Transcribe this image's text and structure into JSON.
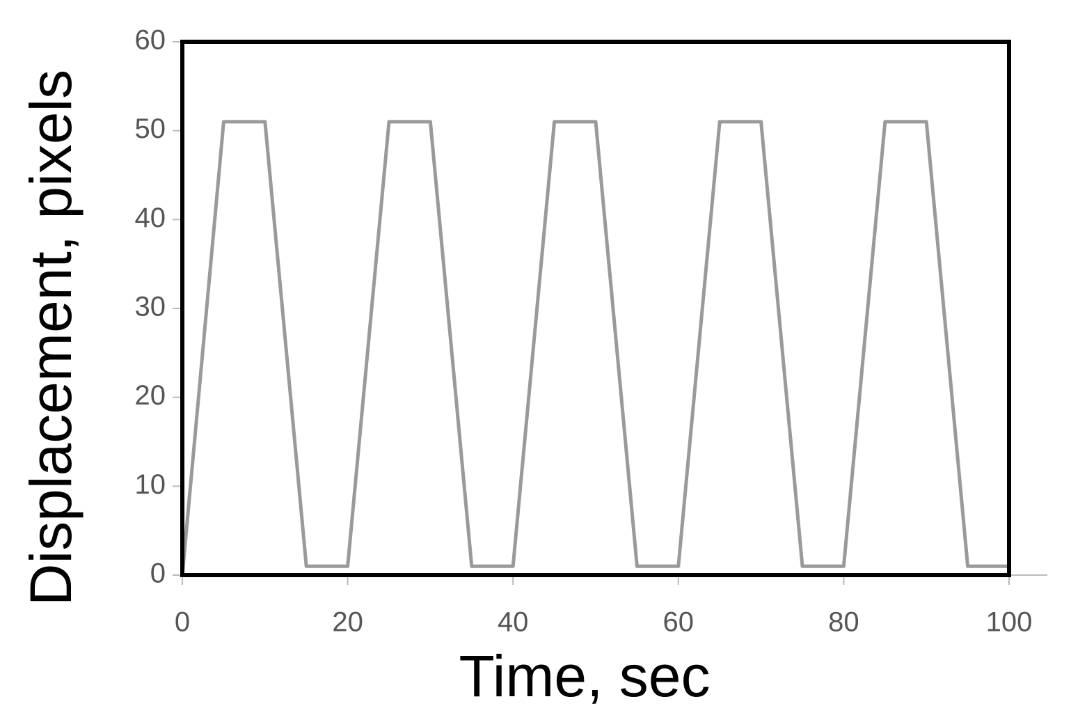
{
  "chart_data": {
    "type": "line",
    "x_label": "Time, sec",
    "y_label": "Displacement, pixels",
    "series": [
      {
        "color": "#9a9a9a",
        "x": [
          0,
          5,
          10,
          15,
          20,
          25,
          30,
          35,
          40,
          45,
          50,
          55,
          60,
          65,
          70,
          75,
          80,
          85,
          90,
          95,
          100
        ],
        "values": [
          0,
          51,
          51,
          1,
          1,
          51,
          51,
          1,
          1,
          51,
          51,
          1,
          1,
          51,
          51,
          1,
          1,
          51,
          51,
          1,
          1
        ]
      }
    ],
    "xlim": [
      0,
      100
    ],
    "xticks": [
      0,
      20,
      40,
      60,
      80,
      100
    ],
    "ylim": [
      0,
      60
    ],
    "yticks": [
      0,
      10,
      20,
      30,
      40,
      50,
      60
    ],
    "grid": false
  }
}
